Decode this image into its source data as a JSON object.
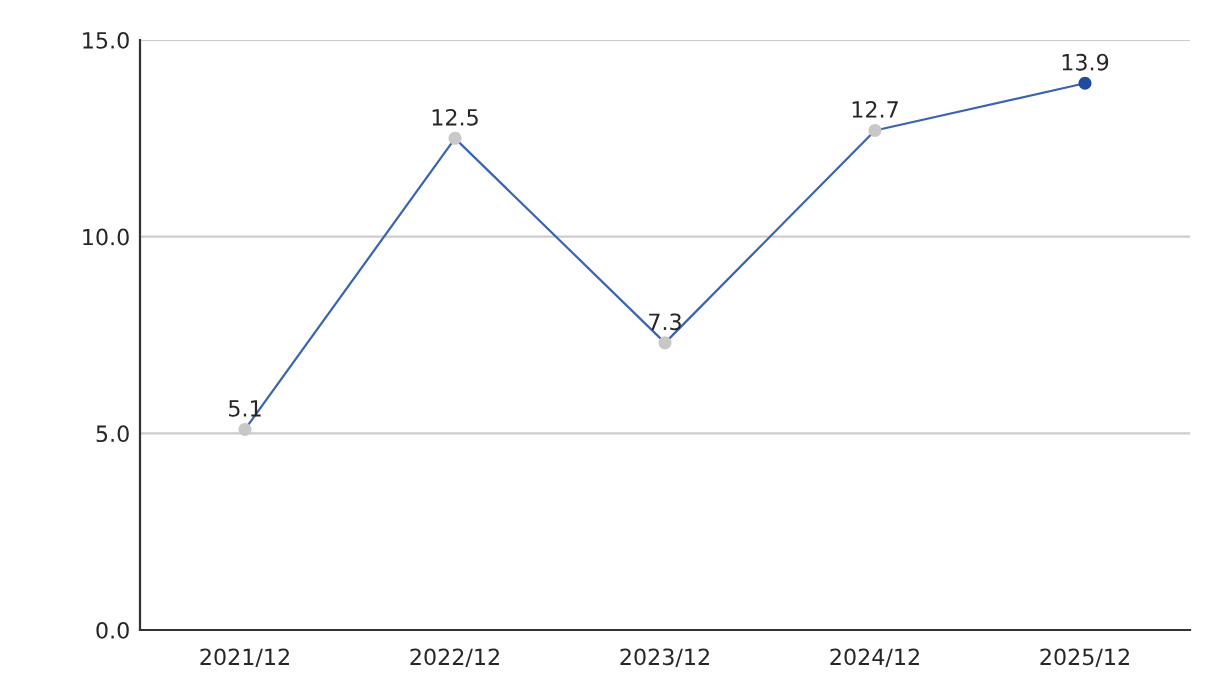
{
  "chart_data": {
    "type": "line",
    "categories": [
      "2021/12",
      "2022/12",
      "2023/12",
      "2024/12",
      "2025/12"
    ],
    "series": [
      {
        "color": "#3a64b0",
        "colors": [
          "#c8c8c8",
          "#c8c8c8",
          "#c8c8c8",
          "#c8c8c8",
          "#1f4b9c"
        ],
        "values": [
          5.1,
          12.5,
          7.3,
          12.7,
          13.9
        ]
      }
    ],
    "ylim": [
      0,
      15
    ],
    "yticks": [
      {
        "value": 0,
        "label": "0.0"
      },
      {
        "value": 5,
        "label": "5.0"
      },
      {
        "value": 10,
        "label": "10.0"
      },
      {
        "value": 15,
        "label": "15.0"
      }
    ],
    "grid": "y",
    "marker": "circle",
    "line_style": "solid",
    "data_labels": true
  }
}
